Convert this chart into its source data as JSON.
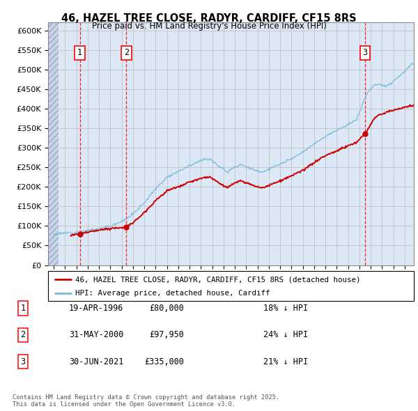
{
  "title_line1": "46, HAZEL TREE CLOSE, RADYR, CARDIFF, CF15 8RS",
  "title_line2": "Price paid vs. HM Land Registry's House Price Index (HPI)",
  "ylabel_ticks": [
    "£0",
    "£50K",
    "£100K",
    "£150K",
    "£200K",
    "£250K",
    "£300K",
    "£350K",
    "£400K",
    "£450K",
    "£500K",
    "£550K",
    "£600K"
  ],
  "ytick_values": [
    0,
    50000,
    100000,
    150000,
    200000,
    250000,
    300000,
    350000,
    400000,
    450000,
    500000,
    550000,
    600000
  ],
  "xlim_start": 1993.5,
  "xlim_end": 2025.8,
  "ylim_min": 0,
  "ylim_max": 620000,
  "hpi_color": "#7ab8d9",
  "price_color": "#cc0000",
  "purchase_dates": [
    1996.3,
    2000.42,
    2021.5
  ],
  "purchase_prices": [
    80000,
    97950,
    335000
  ],
  "purchase_labels": [
    "1",
    "2",
    "3"
  ],
  "legend_line1": "46, HAZEL TREE CLOSE, RADYR, CARDIFF, CF15 8RS (detached house)",
  "legend_line2": "HPI: Average price, detached house, Cardiff",
  "table_rows": [
    [
      "1",
      "19-APR-1996",
      "£80,000",
      "18% ↓ HPI"
    ],
    [
      "2",
      "31-MAY-2000",
      "£97,950",
      "24% ↓ HPI"
    ],
    [
      "3",
      "30-JUN-2021",
      "£335,000",
      "21% ↓ HPI"
    ]
  ],
  "footnote": "Contains HM Land Registry data © Crown copyright and database right 2025.\nThis data is licensed under the Open Government Licence v3.0.",
  "hatch_color": "#c8d4e8",
  "grid_color": "#bbbbbb",
  "bg_color": "#dce8f5"
}
